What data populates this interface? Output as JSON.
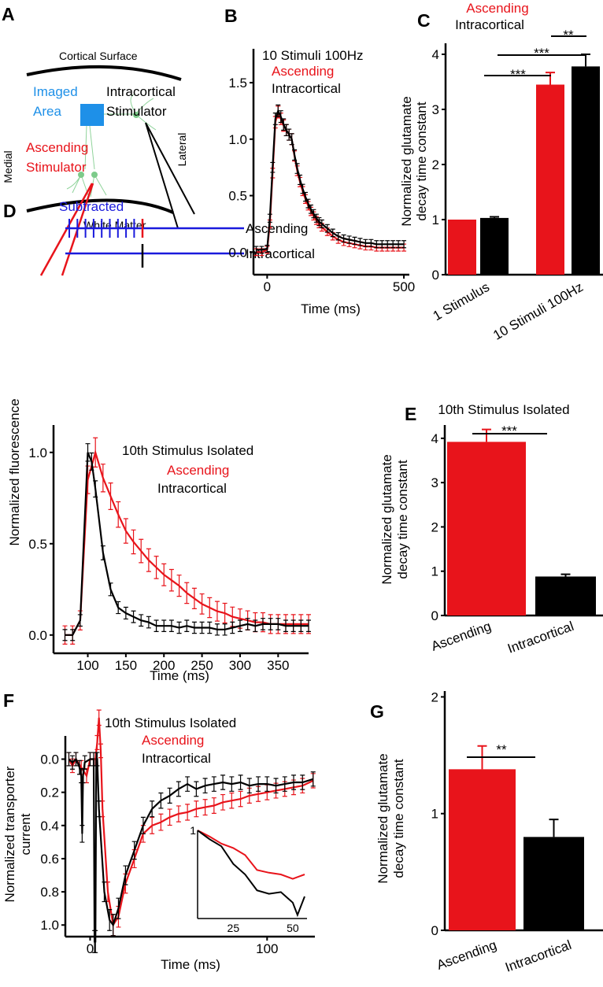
{
  "panel_labels": [
    "A",
    "B",
    "C",
    "D",
    "E",
    "F",
    "G"
  ],
  "diagram": {
    "cortical_surface": "Cortical Surface",
    "white_matter": "White Matter",
    "medial": "Medial",
    "lateral": "Lateral",
    "imaged_area": [
      "Imaged",
      "Area"
    ],
    "intracortical_stimulator": [
      "Intracortical",
      "Stimulator"
    ],
    "ascending_stimulator": [
      "Ascending",
      "Stimulator"
    ]
  },
  "colors": {
    "ascending": "#e8141b",
    "intracortical": "#000000",
    "subtracted": "#1a1adc",
    "imaged_area": "#1e90e8"
  },
  "stim_schematic": {
    "subtracted": "Subtracted",
    "ascending": "Ascending",
    "intracortical": "Intracortical"
  },
  "chart_data": [
    {
      "panel": "B",
      "type": "line",
      "title": "10 Stimuli 100Hz",
      "xlabel": "Time (ms)",
      "ylabel": "",
      "xlim": [
        -50,
        520
      ],
      "ylim": [
        -0.2,
        1.8
      ],
      "xticks": [
        "0",
        "500"
      ],
      "yticks": [
        "0.0",
        "0.5",
        "1.0",
        "1.5"
      ],
      "legend": [
        "Ascending",
        "Intracortical"
      ],
      "series": [
        {
          "name": "Ascending",
          "x": [
            -40,
            -20,
            0,
            10,
            20,
            30,
            40,
            50,
            60,
            70,
            80,
            90,
            100,
            110,
            120,
            130,
            140,
            150,
            160,
            170,
            180,
            190,
            200,
            220,
            240,
            260,
            280,
            300,
            320,
            340,
            360,
            380,
            400,
            420,
            440,
            460,
            480,
            500
          ],
          "y": [
            0,
            0,
            0.02,
            0.25,
            0.7,
            1.15,
            1.24,
            1.18,
            1.12,
            1.08,
            1.04,
            1.0,
            0.85,
            0.72,
            0.62,
            0.54,
            0.47,
            0.41,
            0.36,
            0.32,
            0.28,
            0.25,
            0.22,
            0.18,
            0.14,
            0.11,
            0.09,
            0.08,
            0.07,
            0.06,
            0.05,
            0.05,
            0.04,
            0.04,
            0.04,
            0.04,
            0.04,
            0.04
          ],
          "error": 0.03
        },
        {
          "name": "Intracortical",
          "x": [
            -40,
            -20,
            0,
            10,
            20,
            30,
            40,
            50,
            60,
            70,
            80,
            90,
            100,
            110,
            120,
            130,
            140,
            150,
            160,
            170,
            180,
            190,
            200,
            220,
            240,
            260,
            280,
            300,
            320,
            340,
            360,
            380,
            400,
            420,
            440,
            460,
            480,
            500
          ],
          "y": [
            0.02,
            0.02,
            0.03,
            0.3,
            0.75,
            1.18,
            1.25,
            1.2,
            1.13,
            1.08,
            1.04,
            1.0,
            0.86,
            0.74,
            0.64,
            0.56,
            0.49,
            0.43,
            0.38,
            0.34,
            0.3,
            0.27,
            0.25,
            0.21,
            0.17,
            0.14,
            0.12,
            0.11,
            0.1,
            0.09,
            0.08,
            0.08,
            0.07,
            0.07,
            0.07,
            0.07,
            0.07,
            0.07
          ],
          "error": 0.03
        }
      ]
    },
    {
      "panel": "C",
      "type": "bar",
      "ylabel": [
        "Normalized glutamate",
        "decay time constant"
      ],
      "ylim": [
        0,
        4.2
      ],
      "yticks": [
        "0",
        "1",
        "2",
        "3",
        "4"
      ],
      "categories": [
        "1 Stimulus",
        "10 Stimuli 100Hz"
      ],
      "legend": [
        "Ascending",
        "Intracortical"
      ],
      "series": [
        {
          "name": "Ascending",
          "values": [
            1.0,
            3.45
          ],
          "errors": [
            0.0,
            0.22
          ]
        },
        {
          "name": "Intracortical",
          "values": [
            1.03,
            3.78
          ],
          "errors": [
            0.02,
            0.22
          ]
        }
      ],
      "significance": [
        "***",
        "***",
        "**"
      ]
    },
    {
      "panel": "D",
      "type": "line",
      "title": "10th Stimulus Isolated",
      "xlabel": "Time (ms)",
      "ylabel": "Normalized fluorescence",
      "xlim": [
        55,
        390
      ],
      "ylim": [
        -0.1,
        1.15
      ],
      "xticks": [
        "100",
        "150",
        "200",
        "250",
        "300",
        "350"
      ],
      "yticks": [
        "0.0",
        "0.5",
        "1.0"
      ],
      "legend": [
        "Ascending",
        "Intracortical"
      ],
      "series": [
        {
          "name": "Ascending",
          "x": [
            70,
            80,
            90,
            100,
            110,
            120,
            130,
            140,
            150,
            160,
            170,
            180,
            190,
            200,
            210,
            220,
            230,
            240,
            250,
            260,
            270,
            280,
            290,
            300,
            310,
            320,
            330,
            340,
            350,
            360,
            370,
            380,
            390
          ],
          "y": [
            0,
            0,
            0.08,
            0.85,
            1.0,
            0.86,
            0.76,
            0.66,
            0.57,
            0.51,
            0.46,
            0.41,
            0.37,
            0.33,
            0.3,
            0.27,
            0.23,
            0.2,
            0.17,
            0.15,
            0.13,
            0.12,
            0.1,
            0.09,
            0.08,
            0.07,
            0.07,
            0.06,
            0.06,
            0.06,
            0.06,
            0.06,
            0.06
          ],
          "error": 0.05
        },
        {
          "name": "Intracortical",
          "x": [
            70,
            80,
            90,
            100,
            105,
            110,
            120,
            130,
            140,
            150,
            160,
            170,
            180,
            190,
            200,
            210,
            220,
            230,
            240,
            250,
            260,
            270,
            280,
            290,
            300,
            310,
            320,
            330,
            340,
            350,
            360,
            370,
            380,
            390
          ],
          "y": [
            0,
            0,
            0.08,
            1.0,
            0.95,
            0.8,
            0.45,
            0.25,
            0.15,
            0.12,
            0.1,
            0.08,
            0.07,
            0.05,
            0.05,
            0.05,
            0.04,
            0.05,
            0.04,
            0.04,
            0.04,
            0.03,
            0.03,
            0.04,
            0.05,
            0.06,
            0.05,
            0.06,
            0.06,
            0.06,
            0.05,
            0.05,
            0.05,
            0.05
          ],
          "error": 0.03
        }
      ]
    },
    {
      "panel": "E",
      "type": "bar",
      "title": "10th Stimulus Isolated",
      "ylabel": [
        "Normalized glutamate",
        "decay time constant"
      ],
      "ylim": [
        0,
        4.3
      ],
      "yticks": [
        "0",
        "1",
        "2",
        "3",
        "4"
      ],
      "categories": [
        "Ascending",
        "Intracortical"
      ],
      "values": [
        3.92,
        0.88
      ],
      "errors": [
        0.28,
        0.05
      ],
      "significance": [
        "***"
      ]
    },
    {
      "panel": "F",
      "type": "line",
      "title": "10th Stimulus Isolated",
      "xlabel": "Time (ms)",
      "ylabel": [
        "Normalized transporter",
        "current"
      ],
      "xlim": [
        -14,
        127
      ],
      "ylim": [
        -0.14,
        1.07
      ],
      "y_inverted": true,
      "xticks": [
        "0",
        "100"
      ],
      "yticks": [
        "0.0",
        "0.2",
        "0.4",
        "0.6",
        "0.8",
        "1.0"
      ],
      "legend": [
        "Ascending",
        "Intracortical"
      ],
      "series": [
        {
          "name": "Ascending",
          "x": [
            -12,
            -10,
            -8,
            -5,
            -2,
            0,
            3,
            4,
            5,
            6,
            7,
            10,
            13,
            16,
            20,
            25,
            30,
            35,
            40,
            45,
            50,
            55,
            60,
            65,
            70,
            75,
            80,
            85,
            90,
            95,
            100,
            105,
            110,
            115,
            120,
            126
          ],
          "y": [
            0.0,
            0.04,
            0.0,
            0.05,
            0.1,
            0.0,
            0.0,
            -0.1,
            -0.25,
            -0.05,
            0.3,
            0.8,
            1.0,
            0.95,
            0.75,
            0.6,
            0.45,
            0.4,
            0.38,
            0.35,
            0.33,
            0.32,
            0.3,
            0.29,
            0.28,
            0.26,
            0.25,
            0.24,
            0.22,
            0.21,
            0.2,
            0.19,
            0.18,
            0.17,
            0.16,
            0.13
          ],
          "error": 0.04
        },
        {
          "name": "Intracortical",
          "x": [
            -12,
            -10,
            -8,
            -6,
            -5,
            -4.5,
            -4,
            -3,
            0,
            2,
            2.5,
            3,
            3.5,
            4,
            5,
            8,
            11,
            13,
            16,
            20,
            25,
            30,
            35,
            40,
            45,
            50,
            55,
            60,
            65,
            70,
            75,
            80,
            85,
            90,
            95,
            100,
            105,
            110,
            115,
            120,
            126
          ],
          "y": [
            0.0,
            0.02,
            0.0,
            0.05,
            0.1,
            0.45,
            0.1,
            0.02,
            0.0,
            0.0,
            1.1,
            1.1,
            0.0,
            0.0,
            0.3,
            0.8,
            0.97,
            1.0,
            0.9,
            0.7,
            0.55,
            0.4,
            0.3,
            0.25,
            0.22,
            0.18,
            0.15,
            0.18,
            0.16,
            0.15,
            0.14,
            0.15,
            0.14,
            0.16,
            0.15,
            0.15,
            0.16,
            0.15,
            0.14,
            0.14,
            0.12
          ],
          "error": 0.04
        }
      ],
      "inset": {
        "xlim": [
          10,
          56
        ],
        "ylim": [
          0,
          1
        ],
        "xticks": [
          "25",
          "50"
        ],
        "yticks": [
          "1"
        ],
        "series": [
          {
            "name": "Ascending",
            "x": [
              10,
              15,
              20,
              25,
              30,
              35,
              40,
              45,
              50,
              55
            ],
            "y": [
              1,
              0.93,
              0.85,
              0.8,
              0.72,
              0.55,
              0.52,
              0.5,
              0.45,
              0.5
            ]
          },
          {
            "name": "Intracortical",
            "x": [
              10,
              15,
              20,
              25,
              30,
              35,
              40,
              45,
              50,
              52,
              55
            ],
            "y": [
              1,
              0.9,
              0.82,
              0.62,
              0.5,
              0.32,
              0.28,
              0.3,
              0.18,
              0.04,
              0.25
            ]
          }
        ]
      }
    },
    {
      "panel": "G",
      "type": "bar",
      "ylabel": [
        "Normalized glutamate",
        "decay time constant"
      ],
      "ylim": [
        0,
        2.05
      ],
      "yticks": [
        "0",
        "1",
        "2"
      ],
      "categories": [
        "Ascending",
        "Intracortical"
      ],
      "values": [
        1.38,
        0.8
      ],
      "errors": [
        0.2,
        0.15
      ],
      "significance": [
        "**"
      ]
    }
  ]
}
